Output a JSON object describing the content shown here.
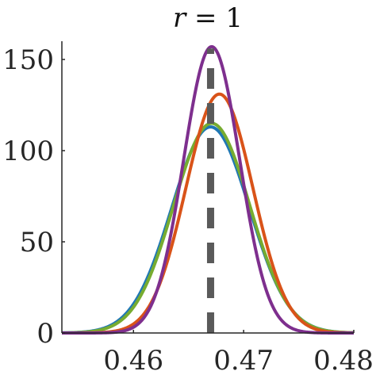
{
  "chart_data": {
    "type": "line",
    "title_var": "r",
    "title_rest": " = 1",
    "xlabel": "",
    "ylabel": "",
    "xlim": [
      0.4535,
      0.48
    ],
    "ylim": [
      0,
      160
    ],
    "x_ticks": [
      0.46,
      0.47,
      0.48
    ],
    "x_tick_labels": [
      "0.46",
      "0.47",
      "0.48"
    ],
    "y_ticks": [
      0,
      50,
      100,
      150
    ],
    "y_tick_labels": [
      "0",
      "50",
      "100",
      "150"
    ],
    "grid": false,
    "reference_line": {
      "x": 0.467,
      "color": "#5a5a5a",
      "style": "dashed"
    },
    "series": [
      {
        "color": "#1f77b4",
        "mean": 0.467,
        "peak": 113
      },
      {
        "color": "#77ac30",
        "mean": 0.4671,
        "peak": 115
      },
      {
        "color": "#d95319",
        "mean": 0.4678,
        "peak": 131
      },
      {
        "color": "#7e2f8e",
        "mean": 0.4671,
        "peak": 157
      }
    ]
  }
}
